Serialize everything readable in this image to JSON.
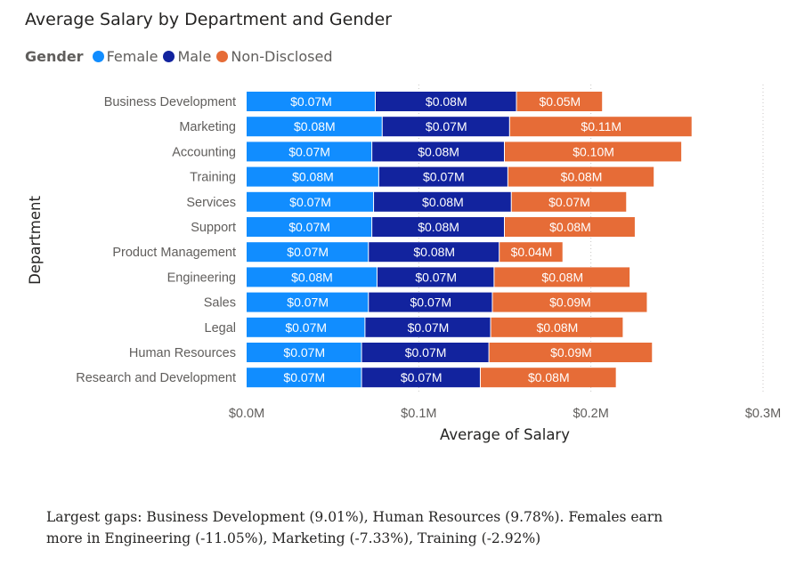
{
  "chart_data": {
    "type": "bar",
    "orientation": "horizontal",
    "stacked": true,
    "title": "Average Salary by Department and Gender",
    "xlabel": "Average of Salary",
    "ylabel": "Department",
    "xlim": [
      0,
      0.3
    ],
    "x_ticks": [
      0,
      0.1,
      0.2,
      0.3
    ],
    "x_tick_labels": [
      "$0.0M",
      "$0.1M",
      "$0.2M",
      "$0.3M"
    ],
    "grid": true,
    "legend": {
      "title": "Gender",
      "position": "top-left"
    },
    "categories": [
      "Business Development",
      "Marketing",
      "Accounting",
      "Training",
      "Services",
      "Support",
      "Product Management",
      "Engineering",
      "Sales",
      "Legal",
      "Human Resources",
      "Research and Development"
    ],
    "series": [
      {
        "name": "Female",
        "color": "#118DFF",
        "values": [
          0.075,
          0.079,
          0.073,
          0.077,
          0.074,
          0.073,
          0.071,
          0.076,
          0.071,
          0.069,
          0.067,
          0.067
        ],
        "labels": [
          "$0.07M",
          "$0.08M",
          "$0.07M",
          "$0.08M",
          "$0.07M",
          "$0.07M",
          "$0.07M",
          "$0.08M",
          "$0.07M",
          "$0.07M",
          "$0.07M",
          "$0.07M"
        ]
      },
      {
        "name": "Male",
        "color": "#12239E",
        "values": [
          0.082,
          0.074,
          0.077,
          0.075,
          0.08,
          0.077,
          0.076,
          0.068,
          0.072,
          0.073,
          0.074,
          0.069
        ],
        "labels": [
          "$0.08M",
          "$0.07M",
          "$0.08M",
          "$0.07M",
          "$0.08M",
          "$0.08M",
          "$0.08M",
          "$0.07M",
          "$0.07M",
          "$0.07M",
          "$0.07M",
          "$0.07M"
        ]
      },
      {
        "name": "Non-Disclosed",
        "color": "#E66C37",
        "values": [
          0.05,
          0.106,
          0.103,
          0.085,
          0.067,
          0.076,
          0.037,
          0.079,
          0.09,
          0.077,
          0.095,
          0.079
        ],
        "labels": [
          "$0.05M",
          "$0.11M",
          "$0.10M",
          "$0.08M",
          "$0.07M",
          "$0.08M",
          "$0.04M",
          "$0.08M",
          "$0.09M",
          "$0.08M",
          "$0.09M",
          "$0.08M"
        ]
      }
    ]
  },
  "note": "Largest gaps: Business Development (9.01%), Human Resources (9.78%). Females earn more in Engineering (-11.05%), Marketing (-7.33%), Training (-2.92%)"
}
